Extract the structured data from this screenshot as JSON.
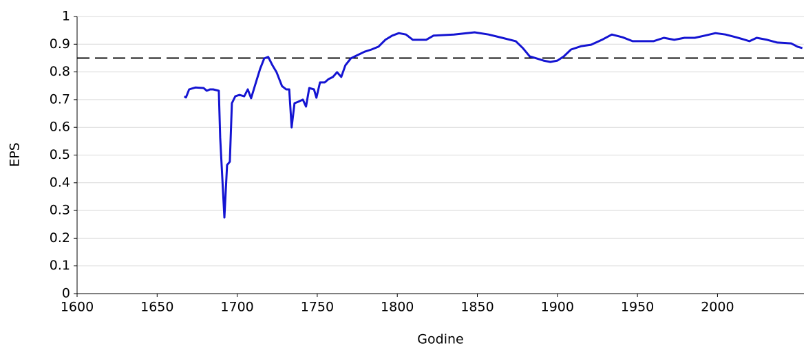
{
  "chart_data": {
    "type": "line",
    "x_label": "Godine",
    "y_label": "EPS",
    "x": [
      1667,
      1668,
      1670,
      1674,
      1679,
      1681,
      1683,
      1685,
      1688.5,
      1689.4,
      1692,
      1693.7,
      1695.4,
      1696.7,
      1698.8,
      1701.4,
      1704.4,
      1706.6,
      1708.7,
      1711.7,
      1714.3,
      1716.9,
      1719.4,
      1722,
      1724.6,
      1728,
      1730.6,
      1732.5,
      1734,
      1735.8,
      1738,
      1741,
      1743,
      1745,
      1748,
      1749.5,
      1751.7,
      1754.7,
      1757,
      1759.8,
      1762.4,
      1765,
      1767.6,
      1771,
      1775.3,
      1779.6,
      1783.9,
      1788.2,
      1792.5,
      1796.8,
      1801,
      1805.4,
      1809.7,
      1814,
      1818,
      1822.6,
      1835.4,
      1848.3,
      1857,
      1865.5,
      1874,
      1878.4,
      1882.7,
      1887,
      1891.3,
      1895.6,
      1900,
      1904,
      1908.5,
      1915,
      1921,
      1927.8,
      1934,
      1940.7,
      1947,
      1953.6,
      1960,
      1966.5,
      1973,
      1979.4,
      1985.8,
      1992,
      1998.7,
      2005,
      2011.6,
      2015.9,
      2020,
      2024.5,
      2031,
      2037.4,
      2046,
      2050,
      2053
    ],
    "values": [
      0.712,
      0.708,
      0.737,
      0.744,
      0.742,
      0.732,
      0.737,
      0.737,
      0.732,
      0.563,
      0.275,
      0.464,
      0.476,
      0.687,
      0.712,
      0.717,
      0.712,
      0.737,
      0.705,
      0.762,
      0.811,
      0.849,
      0.854,
      0.824,
      0.799,
      0.749,
      0.737,
      0.737,
      0.6,
      0.687,
      0.692,
      0.7,
      0.675,
      0.742,
      0.737,
      0.707,
      0.762,
      0.762,
      0.774,
      0.782,
      0.799,
      0.782,
      0.824,
      0.849,
      0.861,
      0.873,
      0.881,
      0.891,
      0.916,
      0.931,
      0.94,
      0.935,
      0.916,
      0.916,
      0.916,
      0.931,
      0.935,
      0.943,
      0.935,
      0.923,
      0.911,
      0.886,
      0.856,
      0.849,
      0.841,
      0.836,
      0.841,
      0.856,
      0.881,
      0.893,
      0.898,
      0.916,
      0.935,
      0.925,
      0.911,
      0.911,
      0.911,
      0.923,
      0.916,
      0.923,
      0.923,
      0.931,
      0.94,
      0.935,
      0.925,
      0.918,
      0.911,
      0.923,
      0.916,
      0.906,
      0.903,
      0.891,
      0.886
    ],
    "color": "#1414d2",
    "reference_line": 0.85,
    "xlim": [
      1600,
      2054
    ],
    "xticks": [
      1600,
      1650,
      1700,
      1750,
      1800,
      1850,
      1900,
      1950,
      2000
    ],
    "ylim": [
      0,
      1
    ],
    "yticks": [
      0,
      0.1,
      0.2,
      0.3,
      0.4,
      0.5,
      0.6,
      0.7,
      0.8,
      0.9,
      1
    ],
    "grid": true
  }
}
